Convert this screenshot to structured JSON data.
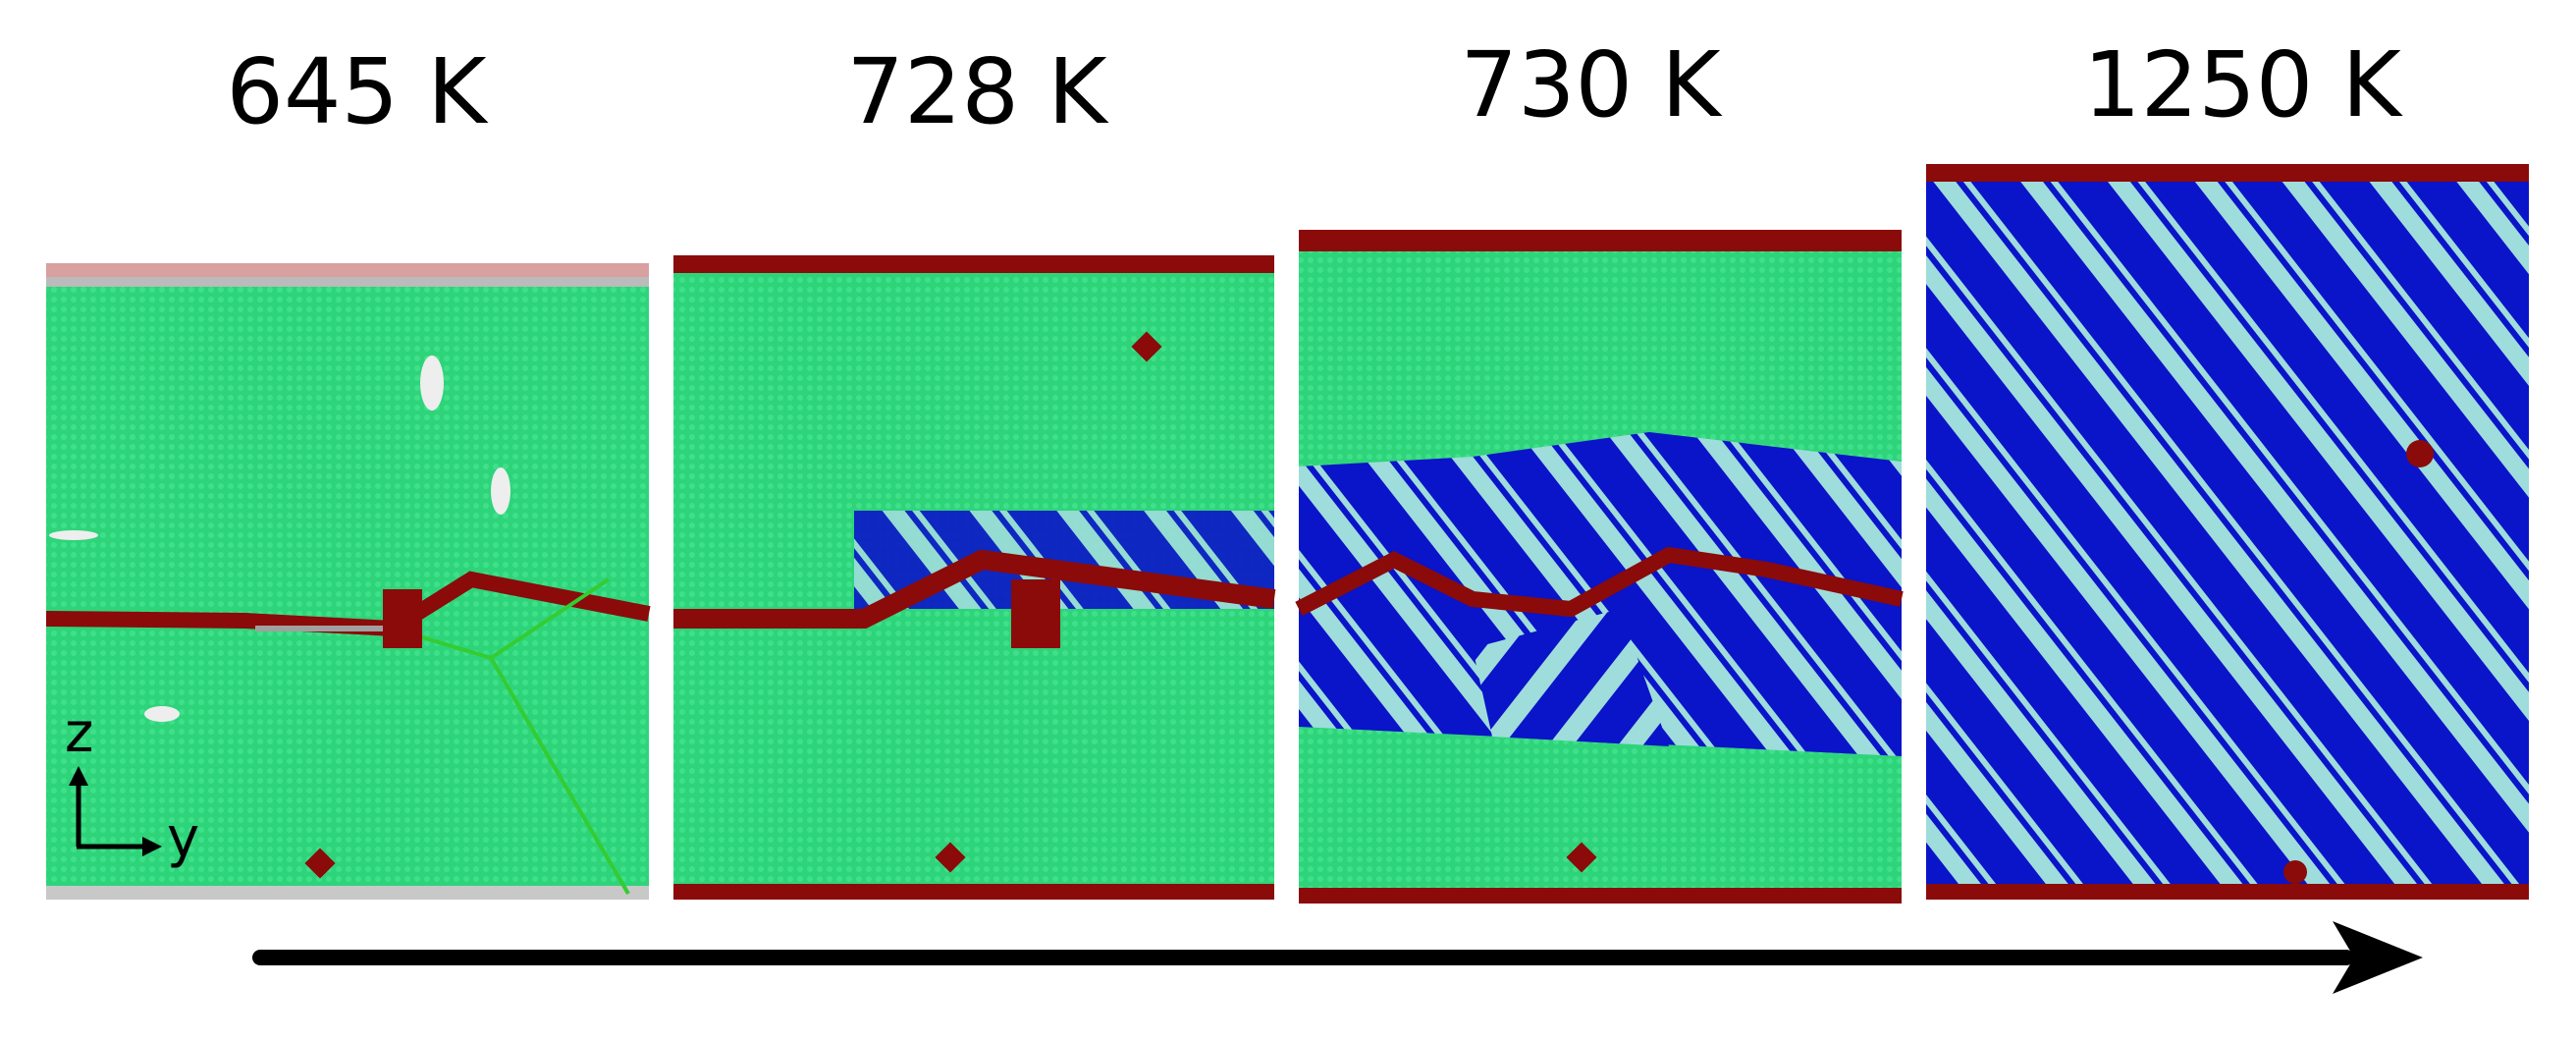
{
  "panels": [
    {
      "label": "645 K"
    },
    {
      "label": "728 K"
    },
    {
      "label": "730 K"
    },
    {
      "label": "1250 K"
    }
  ],
  "axes": {
    "vertical": "z",
    "horizontal": "y"
  }
}
